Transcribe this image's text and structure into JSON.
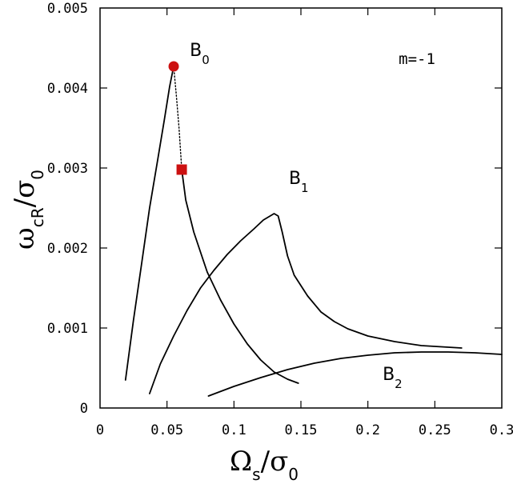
{
  "chart_data": {
    "type": "line",
    "xlim": [
      0,
      0.3
    ],
    "ylim": [
      0,
      0.005
    ],
    "x_ticks": [
      "0",
      "0.05",
      "0.1",
      "0.15",
      "0.2",
      "0.25",
      "0.3"
    ],
    "y_ticks": [
      "0",
      "0.001",
      "0.002",
      "0.003",
      "0.004",
      "0.005"
    ],
    "xlabel": {
      "main": "Ω",
      "sub_a": "s",
      "slash": "/",
      "main_b": "σ",
      "sub_b": "0"
    },
    "ylabel": {
      "main": "ω",
      "sub_a": "cR",
      "slash": "/",
      "main_b": "σ",
      "sub_b": "0"
    },
    "grid": false,
    "annotations": [
      {
        "main": "B",
        "sub": "0",
        "x": 0.067,
        "y": 0.0044
      },
      {
        "main": "B",
        "sub": "1",
        "x": 0.141,
        "y": 0.0028
      },
      {
        "main": "B",
        "sub": "2",
        "x": 0.211,
        "y": 0.00035
      },
      {
        "text": "m=-1",
        "x": 0.223,
        "y": 0.0043
      }
    ],
    "markers": [
      {
        "shape": "circle",
        "x": 0.055,
        "y": 0.00427,
        "color": "#cc1111"
      },
      {
        "shape": "square",
        "x": 0.061,
        "y": 0.00298,
        "color": "#cc1111"
      }
    ],
    "series": [
      {
        "style": "solid",
        "points": [
          [
            0.019,
            0.00035
          ],
          [
            0.025,
            0.0011
          ],
          [
            0.031,
            0.0018
          ],
          [
            0.037,
            0.0025
          ],
          [
            0.043,
            0.0031
          ],
          [
            0.048,
            0.0036
          ],
          [
            0.052,
            0.00402
          ],
          [
            0.055,
            0.00427
          ]
        ]
      },
      {
        "style": "dotted",
        "points": [
          [
            0.055,
            0.00427
          ],
          [
            0.057,
            0.0039
          ],
          [
            0.059,
            0.0035
          ],
          [
            0.061,
            0.00298
          ]
        ]
      },
      {
        "style": "solid",
        "points": [
          [
            0.061,
            0.00298
          ],
          [
            0.064,
            0.0026
          ],
          [
            0.07,
            0.0022
          ],
          [
            0.08,
            0.0017
          ],
          [
            0.09,
            0.00135
          ],
          [
            0.1,
            0.00105
          ],
          [
            0.11,
            0.0008
          ],
          [
            0.12,
            0.0006
          ],
          [
            0.13,
            0.00045
          ],
          [
            0.14,
            0.00036
          ],
          [
            0.148,
            0.00031
          ]
        ]
      },
      {
        "style": "solid",
        "points": [
          [
            0.037,
            0.00018
          ],
          [
            0.045,
            0.00055
          ],
          [
            0.055,
            0.0009
          ],
          [
            0.065,
            0.00122
          ],
          [
            0.075,
            0.0015
          ],
          [
            0.085,
            0.00172
          ],
          [
            0.095,
            0.00192
          ],
          [
            0.105,
            0.00209
          ],
          [
            0.115,
            0.00224
          ],
          [
            0.122,
            0.00235
          ],
          [
            0.127,
            0.0024
          ],
          [
            0.13,
            0.00243
          ],
          [
            0.133,
            0.0024
          ],
          [
            0.136,
            0.0022
          ],
          [
            0.14,
            0.0019
          ],
          [
            0.145,
            0.00166
          ],
          [
            0.155,
            0.0014
          ],
          [
            0.165,
            0.0012
          ],
          [
            0.175,
            0.00108
          ],
          [
            0.185,
            0.00099
          ],
          [
            0.2,
            0.0009
          ],
          [
            0.22,
            0.00083
          ],
          [
            0.24,
            0.00078
          ],
          [
            0.26,
            0.00076
          ],
          [
            0.27,
            0.00075
          ]
        ]
      },
      {
        "style": "solid",
        "points": [
          [
            0.081,
            0.00015
          ],
          [
            0.1,
            0.00027
          ],
          [
            0.12,
            0.00038
          ],
          [
            0.14,
            0.00048
          ],
          [
            0.16,
            0.00056
          ],
          [
            0.18,
            0.00062
          ],
          [
            0.2,
            0.00066
          ],
          [
            0.22,
            0.00069
          ],
          [
            0.24,
            0.0007
          ],
          [
            0.26,
            0.0007
          ],
          [
            0.28,
            0.00069
          ],
          [
            0.3,
            0.00067
          ]
        ]
      }
    ]
  }
}
